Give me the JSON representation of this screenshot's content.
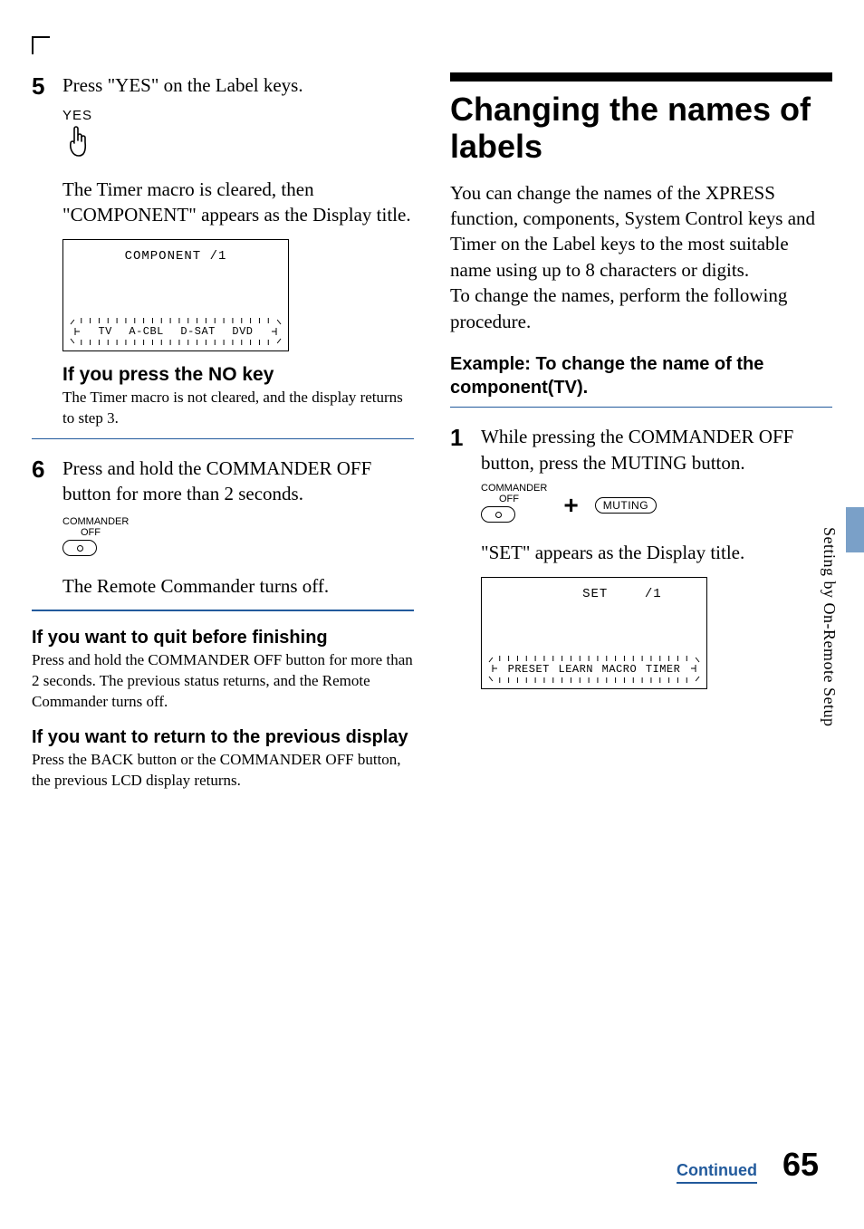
{
  "left": {
    "step5": {
      "num": "5",
      "text": "Press \"YES\" on the Label keys."
    },
    "yes_label": "YES",
    "after_yes": "The Timer macro is cleared, then \"COMPONENT\" appears as the Display title.",
    "lcd1": {
      "title": "COMPONENT /1",
      "tabs": [
        "TV",
        "A-CBL",
        "D-SAT",
        "DVD"
      ]
    },
    "no_h": "If you press the NO key",
    "no_p": "The Timer macro is not cleared, and the display returns to step 3.",
    "step6": {
      "num": "6",
      "text": "Press and hold the COMMANDER OFF button for more than 2 seconds."
    },
    "commander_label1": "COMMANDER",
    "commander_label2": "OFF",
    "after6": "The Remote Commander turns off.",
    "quit_h": "If you want to quit before finishing",
    "quit_p": "Press and hold the COMMANDER OFF button for more than 2 seconds. The previous status returns, and the Remote Commander turns off.",
    "return_h": "If you want to return to the previous display",
    "return_p": "Press the BACK button or the COMMANDER OFF button, the previous LCD display returns."
  },
  "right": {
    "title": "Changing the names of labels",
    "intro": "You can change the names of the XPRESS function, components, System Control keys and Timer on the Label keys to the most suitable name using up to 8 characters or digits.\nTo change the names, perform the following procedure.",
    "example_h": "Example: To change the name of the component(TV).",
    "step1": {
      "num": "1",
      "text": "While pressing the COMMANDER OFF button, press the MUTING button."
    },
    "commander_label1": "COMMANDER",
    "commander_label2": "OFF",
    "muting_label": "MUTING",
    "after1": "\"SET\" appears as the Display title.",
    "lcd2": {
      "title_left": "SET",
      "title_right": "/1",
      "tabs": [
        "PRESET",
        "LEARN",
        "MACRO",
        "TIMER"
      ]
    }
  },
  "side_text": "Setting by On-Remote Setup",
  "footer": {
    "continued": "Continued",
    "page": "65"
  },
  "colors": {
    "rule": "#225a9c",
    "sidetab": "#7aa0c8"
  }
}
